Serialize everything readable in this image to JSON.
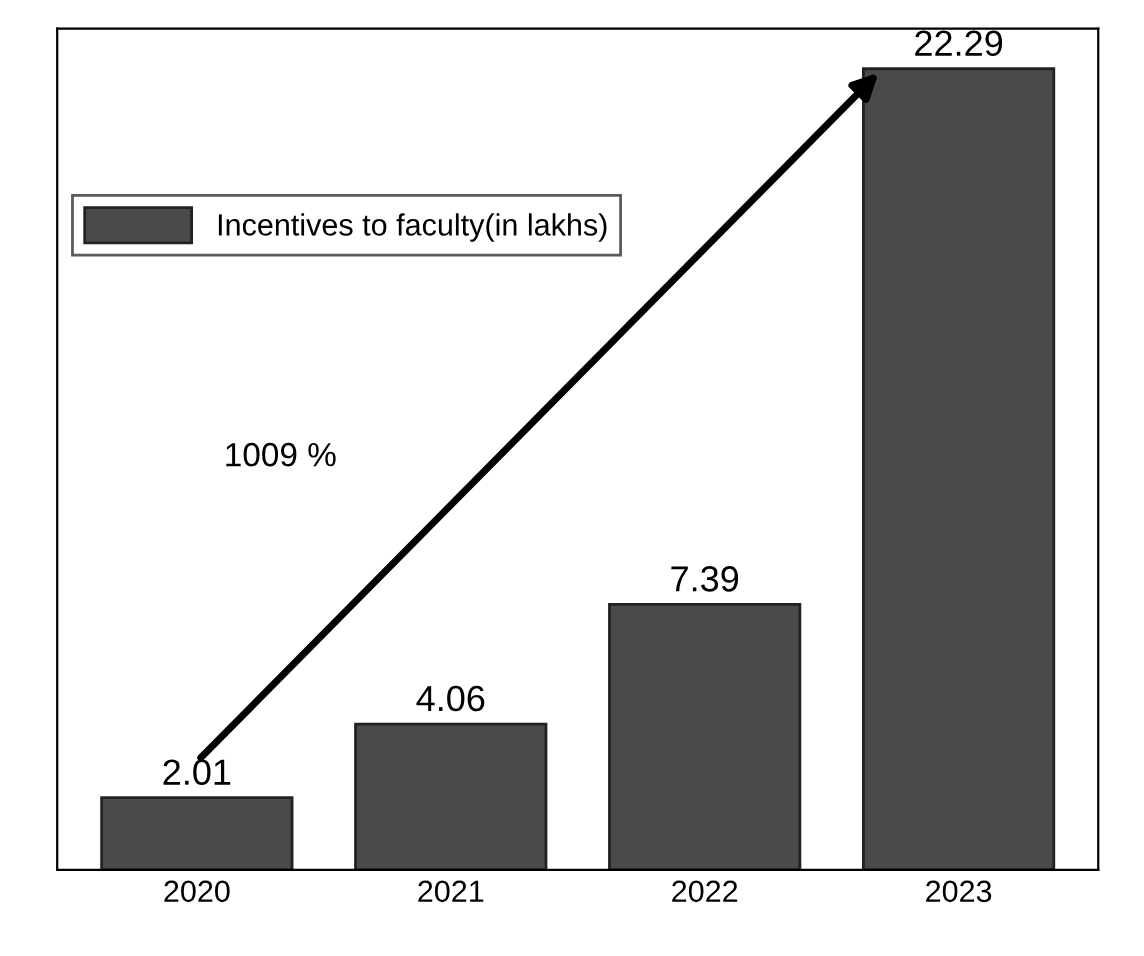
{
  "chart_data": {
    "type": "bar",
    "categories": [
      "2020",
      "2021",
      "2022",
      "2023"
    ],
    "series": [
      {
        "name": "Incentives to faculty(in lakhs)",
        "color": "#4a4a4a",
        "values": [
          2.01,
          4.06,
          7.39,
          22.29
        ]
      }
    ],
    "data_labels": true,
    "legend": "top left",
    "grid": false,
    "tick_labels": "x",
    "annotations": [
      "1009 %"
    ]
  }
}
